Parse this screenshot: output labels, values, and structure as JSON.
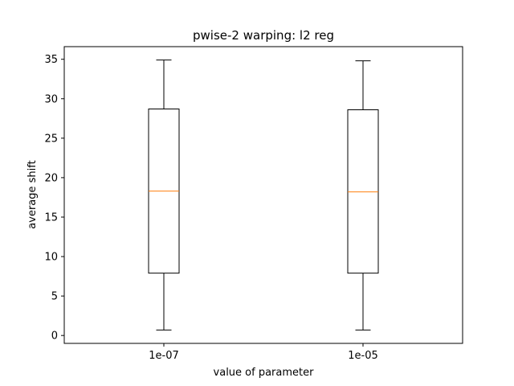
{
  "chart_data": {
    "type": "boxplot",
    "title": "pwise-2 warping: l2 reg",
    "xlabel": "value of parameter",
    "ylabel": "average shift",
    "ylim": [
      -1.0,
      36.6
    ],
    "yticks": [
      0,
      5,
      10,
      15,
      20,
      25,
      30,
      35
    ],
    "grid": false,
    "colors": {
      "box": "#000000",
      "median": "#ff7f0e",
      "frame": "#000000"
    },
    "boxes": [
      {
        "label": "1e-07",
        "whisker_low": 0.7,
        "q1": 7.9,
        "median": 18.3,
        "q3": 28.7,
        "whisker_high": 34.9
      },
      {
        "label": "1e-05",
        "whisker_low": 0.7,
        "q1": 7.9,
        "median": 18.2,
        "q3": 28.6,
        "whisker_high": 34.8
      }
    ]
  }
}
